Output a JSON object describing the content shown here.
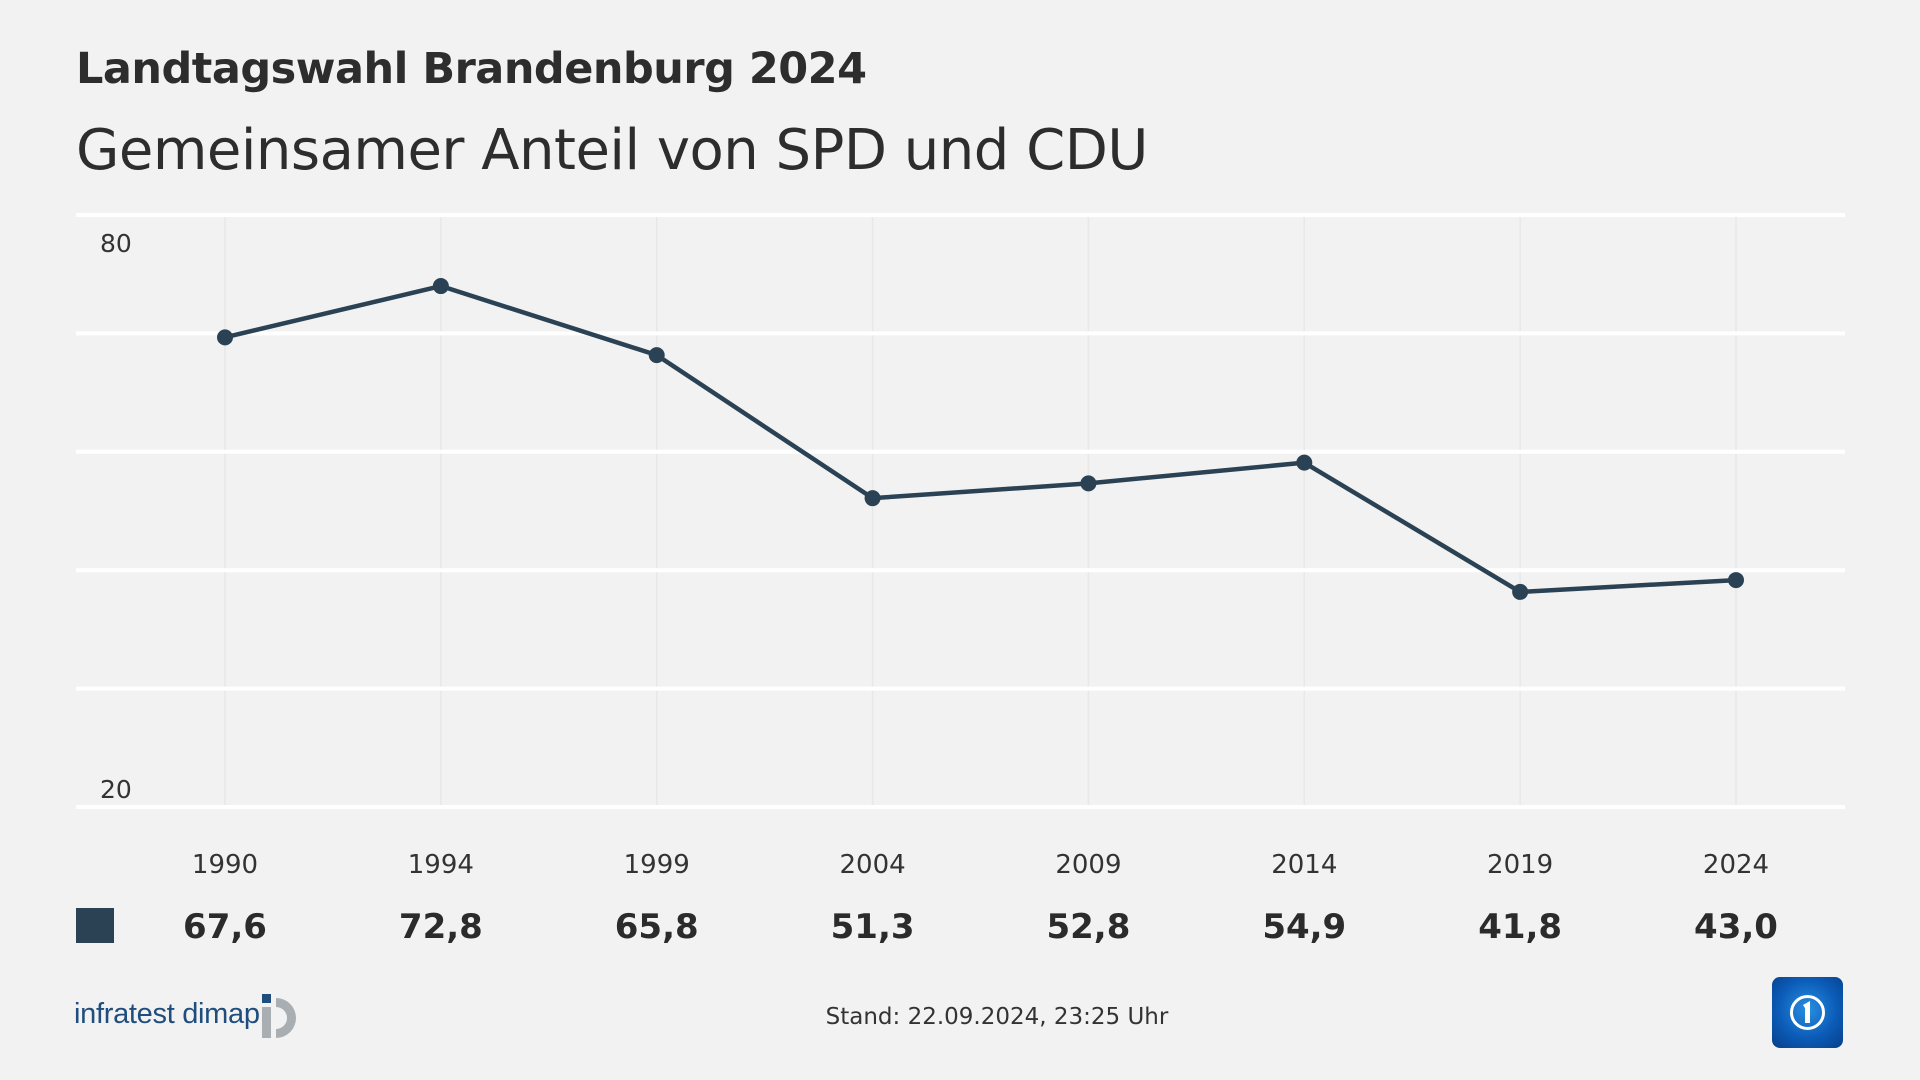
{
  "header": {
    "title": "Landtagswahl Brandenburg 2024",
    "subtitle": "Gemeinsamer Anteil von SPD und CDU"
  },
  "chart_data": {
    "type": "line",
    "categories": [
      "1990",
      "1994",
      "1999",
      "2004",
      "2009",
      "2014",
      "2019",
      "2024"
    ],
    "values": [
      67.6,
      72.8,
      65.8,
      51.3,
      52.8,
      54.9,
      41.8,
      43.0
    ],
    "value_labels": [
      "67,6",
      "72,8",
      "65,8",
      "51,3",
      "52,8",
      "54,9",
      "41,8",
      "43,0"
    ],
    "ylim": [
      20,
      80
    ],
    "yticks": [
      20,
      32,
      44,
      56,
      68,
      80
    ],
    "ytick_labels": {
      "20": "20",
      "80": "80"
    },
    "grid": true,
    "color": "#2a4254"
  },
  "footer": {
    "stand": "Stand:  22.09.2024, 23:25 Uhr",
    "source_logo": "infratest dimap",
    "broadcaster_logo": "tagesschau"
  },
  "colors": {
    "background": "#f2f2f2",
    "grid": "#ffffff",
    "line": "#2a4254",
    "logo_blue": "#1f4e7e",
    "logo_gray": "#a9aeb3"
  }
}
